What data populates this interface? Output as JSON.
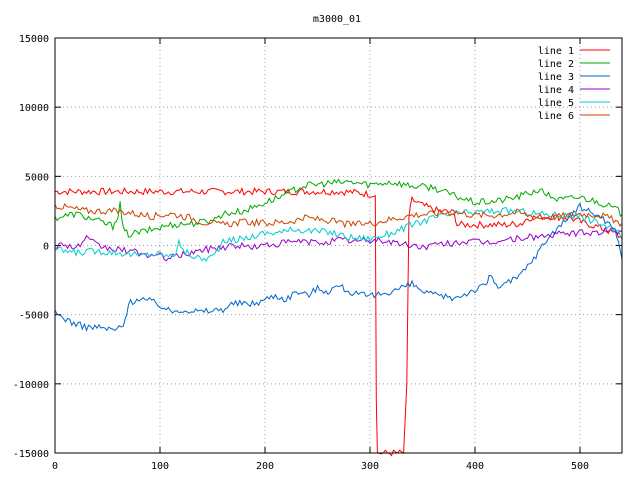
{
  "chart_data": {
    "type": "line",
    "title": "m3000_01",
    "xlabel": "",
    "ylabel": "",
    "xlim": [
      0,
      540
    ],
    "ylim": [
      -15000,
      15000
    ],
    "x_ticks": [
      0,
      100,
      200,
      300,
      400,
      500
    ],
    "y_ticks": [
      -15000,
      -10000,
      -5000,
      0,
      5000,
      10000,
      15000
    ],
    "grid": true,
    "legend_position": "top-right",
    "series": [
      {
        "name": "line 1",
        "color": "#ff0000",
        "points": [
          [
            0,
            3900
          ],
          [
            170,
            3900
          ],
          [
            270,
            3900
          ],
          [
            285,
            3850
          ],
          [
            300,
            3700
          ],
          [
            305,
            3600
          ],
          [
            306,
            -11000
          ],
          [
            307,
            -15000
          ],
          [
            332,
            -15000
          ],
          [
            335,
            -10000
          ],
          [
            337,
            2000
          ],
          [
            340,
            3300
          ],
          [
            350,
            2900
          ],
          [
            365,
            2500
          ],
          [
            380,
            2400
          ],
          [
            383,
            1500
          ],
          [
            430,
            1500
          ],
          [
            445,
            1600
          ],
          [
            450,
            2000
          ],
          [
            470,
            2100
          ],
          [
            490,
            2000
          ],
          [
            505,
            1600
          ],
          [
            515,
            1400
          ],
          [
            525,
            1100
          ],
          [
            535,
            800
          ],
          [
            540,
            500
          ]
        ]
      },
      {
        "name": "line 2",
        "color": "#00aa00",
        "points": [
          [
            0,
            2000
          ],
          [
            20,
            2300
          ],
          [
            40,
            1800
          ],
          [
            55,
            1400
          ],
          [
            60,
            2200
          ],
          [
            62,
            3000
          ],
          [
            65,
            1100
          ],
          [
            70,
            800
          ],
          [
            90,
            1100
          ],
          [
            110,
            1500
          ],
          [
            130,
            1600
          ],
          [
            150,
            1800
          ],
          [
            160,
            2300
          ],
          [
            180,
            2500
          ],
          [
            200,
            3100
          ],
          [
            220,
            3700
          ],
          [
            235,
            4300
          ],
          [
            260,
            4500
          ],
          [
            280,
            4600
          ],
          [
            300,
            4400
          ],
          [
            320,
            4600
          ],
          [
            340,
            4300
          ],
          [
            360,
            4200
          ],
          [
            380,
            3600
          ],
          [
            400,
            3100
          ],
          [
            420,
            3200
          ],
          [
            440,
            3500
          ],
          [
            460,
            4000
          ],
          [
            480,
            3300
          ],
          [
            500,
            3500
          ],
          [
            520,
            3100
          ],
          [
            535,
            2600
          ],
          [
            540,
            2200
          ]
        ]
      },
      {
        "name": "line 3",
        "color": "#0066cc",
        "points": [
          [
            0,
            -4900
          ],
          [
            10,
            -5300
          ],
          [
            20,
            -5700
          ],
          [
            30,
            -5900
          ],
          [
            40,
            -5900
          ],
          [
            55,
            -6100
          ],
          [
            65,
            -5900
          ],
          [
            70,
            -4200
          ],
          [
            80,
            -3800
          ],
          [
            90,
            -4000
          ],
          [
            100,
            -4300
          ],
          [
            110,
            -4800
          ],
          [
            120,
            -4600
          ],
          [
            140,
            -4800
          ],
          [
            160,
            -4600
          ],
          [
            170,
            -4200
          ],
          [
            180,
            -4200
          ],
          [
            190,
            -4200
          ],
          [
            200,
            -3900
          ],
          [
            210,
            -3600
          ],
          [
            220,
            -3900
          ],
          [
            230,
            -3300
          ],
          [
            240,
            -3600
          ],
          [
            250,
            -3100
          ],
          [
            260,
            -3300
          ],
          [
            270,
            -2900
          ],
          [
            285,
            -3500
          ],
          [
            300,
            -3700
          ],
          [
            320,
            -3300
          ],
          [
            340,
            -2800
          ],
          [
            350,
            -3300
          ],
          [
            360,
            -3600
          ],
          [
            380,
            -3800
          ],
          [
            390,
            -3500
          ],
          [
            400,
            -3200
          ],
          [
            410,
            -2900
          ],
          [
            415,
            -2000
          ],
          [
            420,
            -3000
          ],
          [
            430,
            -2700
          ],
          [
            440,
            -2400
          ],
          [
            450,
            -1500
          ],
          [
            460,
            -500
          ],
          [
            470,
            600
          ],
          [
            480,
            1400
          ],
          [
            490,
            2100
          ],
          [
            500,
            2800
          ],
          [
            510,
            2400
          ],
          [
            520,
            2100
          ],
          [
            530,
            1400
          ],
          [
            535,
            800
          ],
          [
            540,
            -1000
          ]
        ]
      },
      {
        "name": "line 4",
        "color": "#9900cc",
        "points": [
          [
            0,
            0
          ],
          [
            10,
            100
          ],
          [
            20,
            -200
          ],
          [
            30,
            500
          ],
          [
            40,
            0
          ],
          [
            50,
            -200
          ],
          [
            70,
            -400
          ],
          [
            90,
            -700
          ],
          [
            110,
            -900
          ],
          [
            130,
            -500
          ],
          [
            150,
            -200
          ],
          [
            170,
            0
          ],
          [
            190,
            -100
          ],
          [
            210,
            100
          ],
          [
            230,
            300
          ],
          [
            250,
            200
          ],
          [
            270,
            400
          ],
          [
            290,
            300
          ],
          [
            310,
            400
          ],
          [
            330,
            100
          ],
          [
            350,
            -100
          ],
          [
            370,
            100
          ],
          [
            390,
            300
          ],
          [
            410,
            200
          ],
          [
            430,
            400
          ],
          [
            450,
            600
          ],
          [
            470,
            700
          ],
          [
            490,
            900
          ],
          [
            510,
            900
          ],
          [
            530,
            1100
          ],
          [
            540,
            1000
          ]
        ]
      },
      {
        "name": "line 5",
        "color": "#00cccc",
        "points": [
          [
            0,
            -300
          ],
          [
            10,
            -400
          ],
          [
            20,
            -500
          ],
          [
            40,
            -400
          ],
          [
            60,
            -500
          ],
          [
            80,
            -700
          ],
          [
            100,
            -600
          ],
          [
            110,
            -800
          ],
          [
            115,
            -500
          ],
          [
            118,
            500
          ],
          [
            120,
            -300
          ],
          [
            130,
            -700
          ],
          [
            140,
            -1000
          ],
          [
            150,
            -800
          ],
          [
            160,
            200
          ],
          [
            170,
            400
          ],
          [
            180,
            500
          ],
          [
            190,
            700
          ],
          [
            200,
            900
          ],
          [
            220,
            1000
          ],
          [
            230,
            1200
          ],
          [
            240,
            1100
          ],
          [
            250,
            1000
          ],
          [
            260,
            1000
          ],
          [
            270,
            800
          ],
          [
            280,
            600
          ],
          [
            300,
            500
          ],
          [
            320,
            900
          ],
          [
            340,
            1500
          ],
          [
            360,
            2000
          ],
          [
            380,
            2300
          ],
          [
            400,
            2400
          ],
          [
            420,
            2500
          ],
          [
            440,
            2500
          ],
          [
            460,
            2300
          ],
          [
            480,
            2200
          ],
          [
            500,
            2100
          ],
          [
            520,
            1600
          ],
          [
            535,
            1000
          ],
          [
            540,
            600
          ]
        ]
      },
      {
        "name": "line 6",
        "color": "#cc4400",
        "points": [
          [
            0,
            2900
          ],
          [
            15,
            2700
          ],
          [
            30,
            2500
          ],
          [
            50,
            2500
          ],
          [
            70,
            2400
          ],
          [
            90,
            2100
          ],
          [
            110,
            2300
          ],
          [
            130,
            2000
          ],
          [
            140,
            1700
          ],
          [
            160,
            1500
          ],
          [
            180,
            1700
          ],
          [
            200,
            1600
          ],
          [
            220,
            1700
          ],
          [
            240,
            2000
          ],
          [
            260,
            1800
          ],
          [
            280,
            1500
          ],
          [
            300,
            1600
          ],
          [
            320,
            1900
          ],
          [
            340,
            2200
          ],
          [
            360,
            2300
          ],
          [
            380,
            2400
          ],
          [
            400,
            2200
          ],
          [
            420,
            2200
          ],
          [
            440,
            2400
          ],
          [
            460,
            2000
          ],
          [
            480,
            2100
          ],
          [
            500,
            2300
          ],
          [
            520,
            2200
          ],
          [
            540,
            1600
          ]
        ]
      }
    ]
  }
}
